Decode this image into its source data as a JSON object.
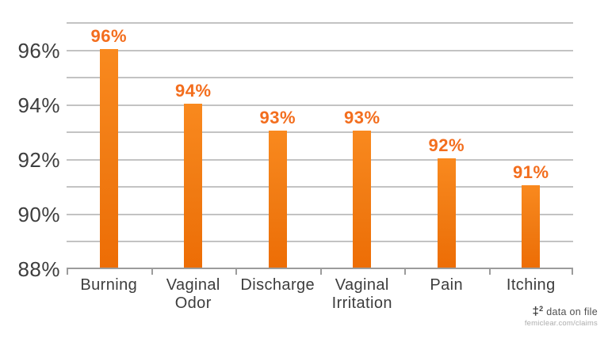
{
  "chart_data": {
    "type": "bar",
    "categories": [
      "Burning",
      "Vaginal Odor",
      "Discharge",
      "Vaginal Irritation",
      "Pain",
      "Itching"
    ],
    "values": [
      96,
      94,
      93,
      93,
      92,
      91
    ],
    "value_labels": [
      "96%",
      "94%",
      "93%",
      "93%",
      "92%",
      "91%"
    ],
    "title": "",
    "xlabel": "",
    "ylabel": "",
    "ylim": [
      88,
      97
    ],
    "gridline_interval": 1,
    "grid": true,
    "legend_position": "none",
    "ytick_values": [
      96,
      94,
      92,
      90,
      88
    ],
    "ytick_labels": [
      "96%",
      "94%",
      "92%",
      "90%",
      "88%"
    ],
    "bar_color_top": "#F9891E",
    "bar_color_bottom": "#ED6D05",
    "value_label_color": "#F36E1E",
    "gridline_color": "#C3C3C3",
    "axis_color": "#9C9C9C",
    "text_color": "#3D3D3D"
  },
  "footnote": {
    "dagger": "‡",
    "superscript": "2",
    "text": " data on file",
    "url": "femiclear.com/claims"
  }
}
